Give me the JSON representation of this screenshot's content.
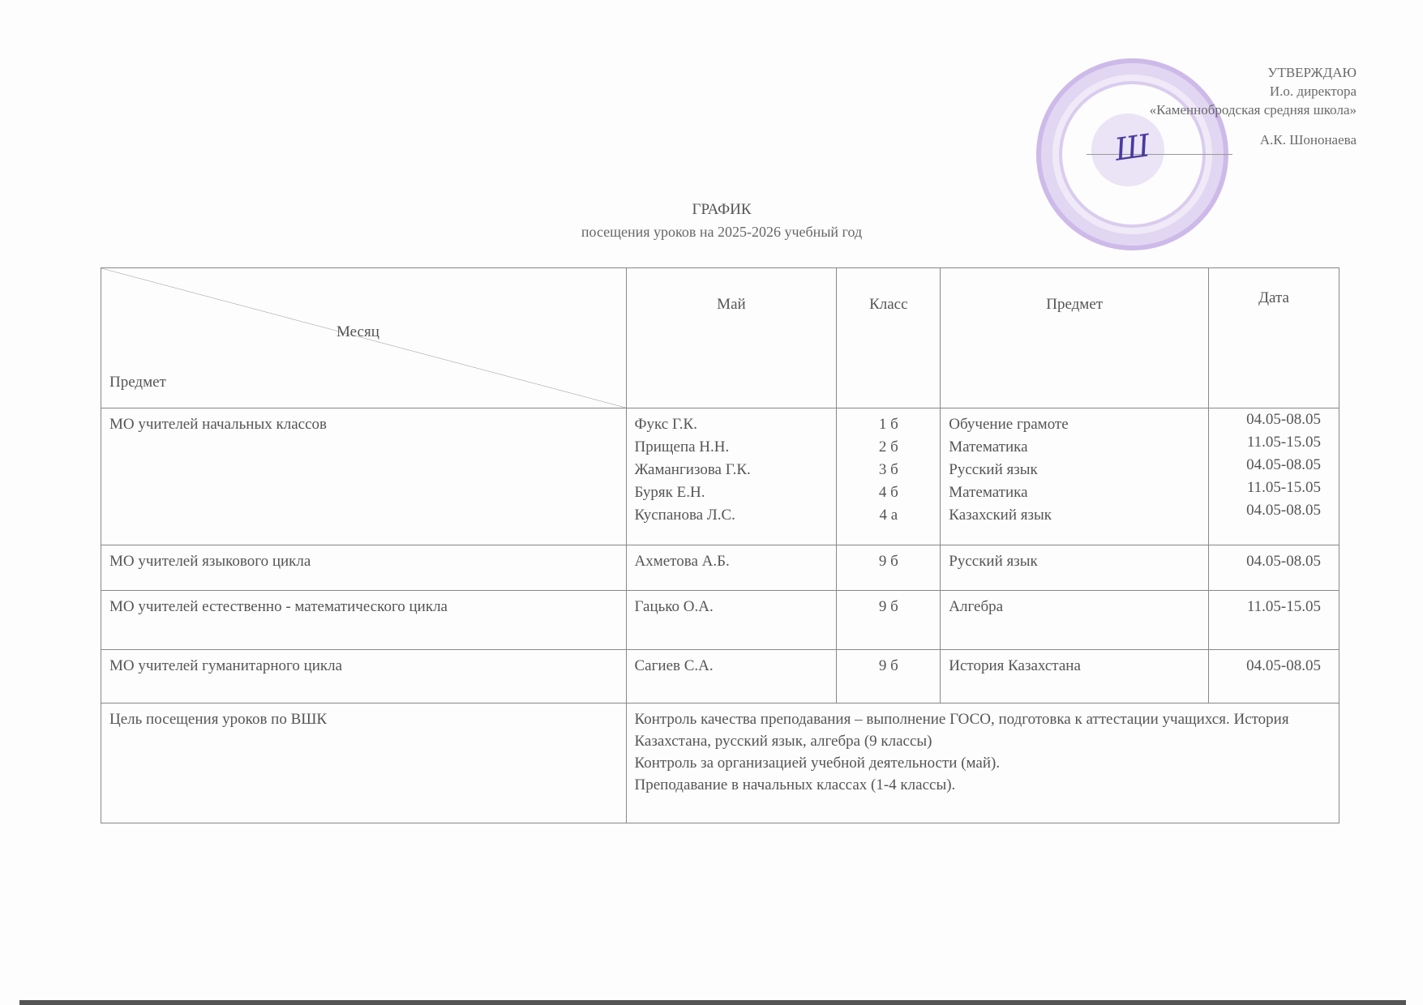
{
  "approval": {
    "line1": "УТВЕРЖДАЮ",
    "line2": "И.о. директора",
    "line3": "«Каменнобродская средняя школа»",
    "name": "А.К. Шононаева"
  },
  "title": "ГРАФИК",
  "subtitle": "посещения уроков на 2025-2026 учебный год",
  "header": {
    "diag_top": "Месяц",
    "diag_bottom": "Предмет",
    "col1": "Май",
    "col2": "Класс",
    "col3": "Предмет",
    "col4": "Дата"
  },
  "rows": [
    {
      "group": "МО учителей начальных классов",
      "teachers": [
        "Фукс Г.К.",
        "Прищепа Н.Н.",
        "Жамангизова Г.К.",
        "Буряк Е.Н.",
        "Куспанова Л.С."
      ],
      "classes": [
        "1 б",
        "2 б",
        "3 б",
        "4 б",
        "4 а"
      ],
      "subjects": [
        "Обучение грамоте",
        "Математика",
        "Русский язык",
        "Математика",
        "Казахский язык"
      ],
      "dates": [
        "04.05-08.05",
        "11.05-15.05",
        "04.05-08.05",
        "11.05-15.05",
        "04.05-08.05"
      ]
    },
    {
      "group": "МО учителей языкового цикла",
      "teachers": [
        "Ахметова А.Б."
      ],
      "classes": [
        "9 б"
      ],
      "subjects": [
        "Русский язык"
      ],
      "dates": [
        "04.05-08.05"
      ]
    },
    {
      "group": "МО учителей естественно - математического цикла",
      "teachers": [
        "Гацько О.А."
      ],
      "classes": [
        "9 б"
      ],
      "subjects": [
        "Алгебра"
      ],
      "dates": [
        "11.05-15.05"
      ]
    },
    {
      "group": "МО учителей гуманитарного цикла",
      "teachers": [
        "Сагиев С.А."
      ],
      "classes": [
        "9 б"
      ],
      "subjects": [
        "История Казахстана"
      ],
      "dates": [
        "04.05-08.05"
      ]
    }
  ],
  "goal": {
    "label": "Цель посещения уроков по ВШК",
    "lines": [
      "Контроль качества преподавания – выполнение ГОСО, подготовка к аттестации учащихся. История Казахстана, русский язык, алгебра (9 классы)",
      "Контроль за организацией учебной деятельности (май).",
      "Преподавание в начальных классах (1-4 классы)."
    ]
  },
  "stamp_color": "#9670d2"
}
